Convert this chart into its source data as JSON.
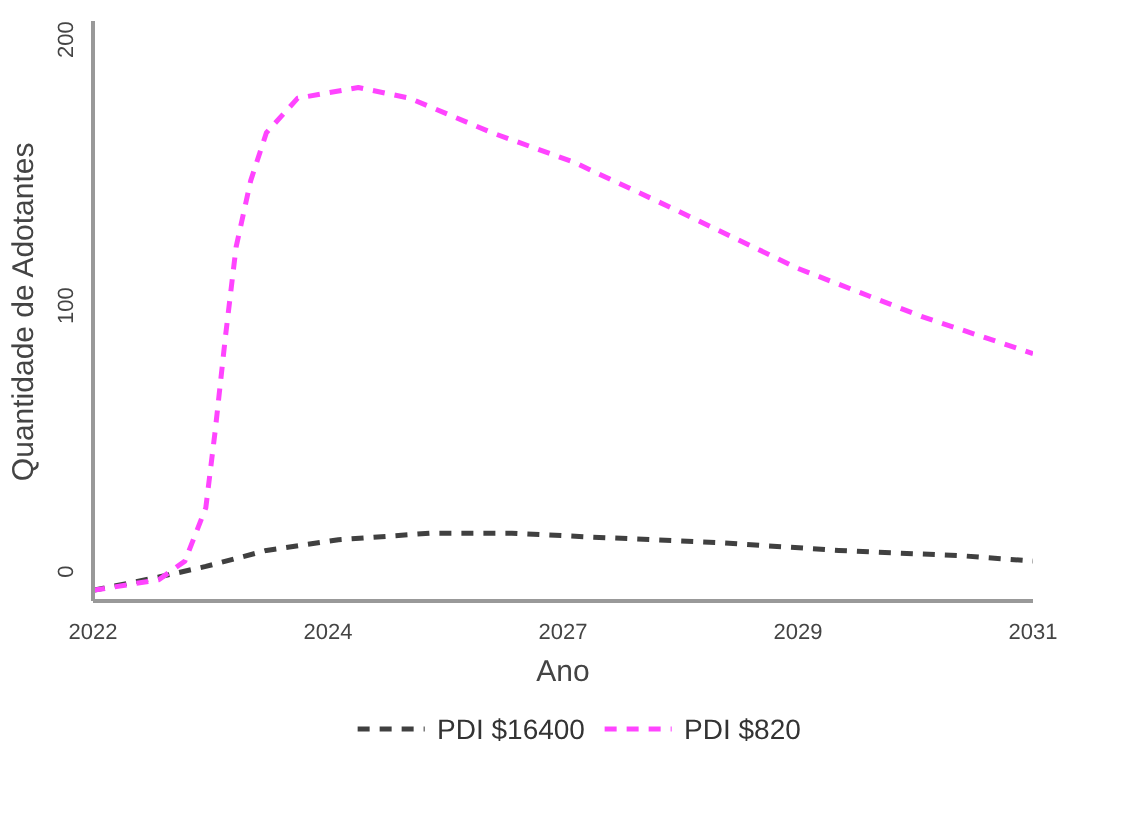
{
  "chart_data": {
    "type": "line",
    "xlabel": "Ano",
    "ylabel": "Quantidade de Adotantes",
    "xlim": [
      2022,
      2031
    ],
    "xticks": [
      2022,
      {
        "value": 2024.25,
        "label": "2024"
      },
      {
        "value": 2026.5,
        "label": "2027"
      },
      {
        "value": 2028.75,
        "label": "2029"
      },
      2031
    ],
    "ylim": [
      -11,
      207
    ],
    "yticks": [
      0,
      100,
      200
    ],
    "grid": false,
    "legend": "bottom",
    "line_style": "dashed",
    "marker": "none",
    "series": [
      {
        "name": "PDI $16400",
        "color": "#404040",
        "x": [
          2022,
          2022.63,
          2023.08,
          2023.66,
          2024.35,
          2025.23,
          2026.01,
          2026.79,
          2027.97,
          2029.14,
          2030.32,
          2031
        ],
        "values": [
          -7,
          -2,
          2,
          8,
          12,
          14.5,
          14.5,
          13,
          11,
          8,
          6,
          4
        ]
      },
      {
        "name": "PDI $820",
        "color": "#ff44ff",
        "x": [
          2022,
          2022.63,
          2022.88,
          2023.08,
          2023.17,
          2023.27,
          2023.37,
          2023.51,
          2023.66,
          2023.96,
          2024.54,
          2025.03,
          2025.82,
          2026.6,
          2027.58,
          2028.75,
          2029.93,
          2031
        ],
        "values": [
          -7,
          -3,
          4,
          24,
          53,
          89,
          122,
          147,
          165,
          178,
          182,
          178,
          165,
          154,
          136,
          114,
          96,
          82
        ]
      }
    ]
  }
}
